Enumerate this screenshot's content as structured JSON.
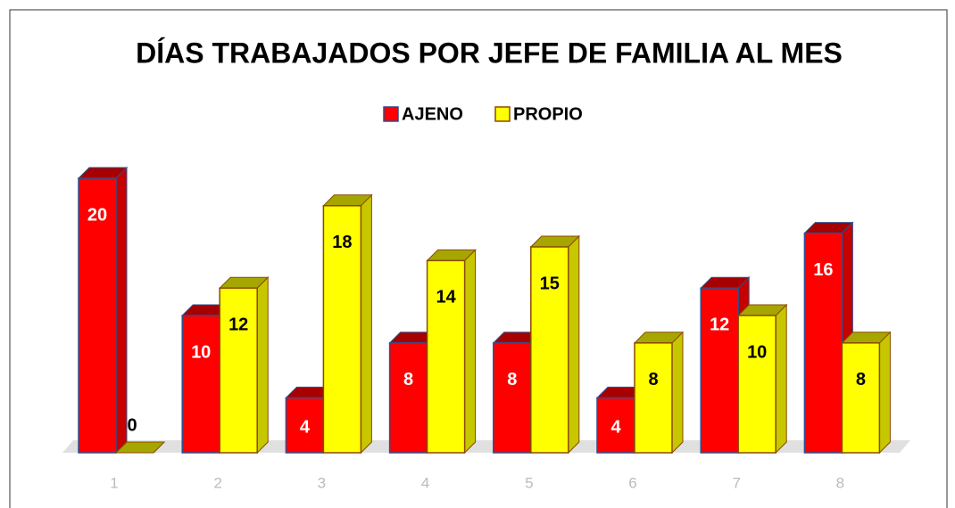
{
  "chart_data": {
    "type": "bar3d",
    "title": "DÍAS TRABAJADOS POR JEFE DE FAMILIA AL MES",
    "categories": [
      "1",
      "2",
      "3",
      "4",
      "5",
      "6",
      "7",
      "8"
    ],
    "series": [
      {
        "name": "AJENO",
        "color": "#ff0000",
        "values": [
          20,
          10,
          4,
          8,
          8,
          4,
          12,
          16
        ]
      },
      {
        "name": "PROPIO",
        "color": "#ffff00",
        "values": [
          0,
          12,
          18,
          14,
          15,
          8,
          10,
          8
        ]
      }
    ]
  }
}
